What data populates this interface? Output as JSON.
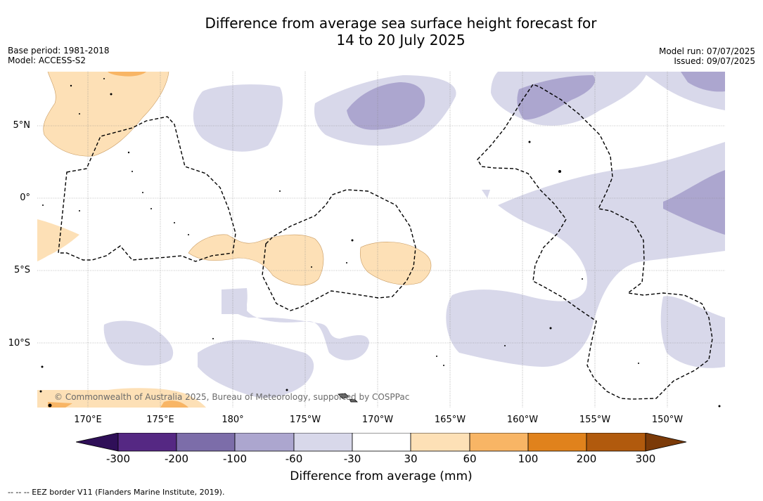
{
  "title_line1": "Difference from average sea surface height forecast for",
  "title_line2": "14 to 20 July 2025",
  "base_period": "Base period: 1981-2018",
  "model": "Model: ACCESS-S2",
  "model_run": "Model run: 07/07/2025",
  "issued": "Issued: 09/07/2025",
  "lat_labels": [
    "5°N",
    "0°",
    "5°S",
    "10°S"
  ],
  "lon_labels": [
    "170°E",
    "175°E",
    "180°",
    "175°W",
    "170°W",
    "165°W",
    "160°W",
    "155°W",
    "150°W"
  ],
  "credit": "© Commonwealth of Australia 2025, Bureau of Meteorology, supported by COSPPac",
  "colorbar": {
    "ticks": [
      "-300",
      "-200",
      "-100",
      "-60",
      "-30",
      "30",
      "60",
      "100",
      "200",
      "300"
    ],
    "colors": [
      "#2f0f58",
      "#552883",
      "#7c6da9",
      "#aca6cf",
      "#d8d8ea",
      "#ffffff",
      "#fde0b6",
      "#f8b565",
      "#e0821c",
      "#b15a0d",
      "#7b3a08"
    ],
    "label": "Difference from average (mm)"
  },
  "legend": "--  --  -- EEZ border V11 (Flanders Marine Institute, 2019)."
}
